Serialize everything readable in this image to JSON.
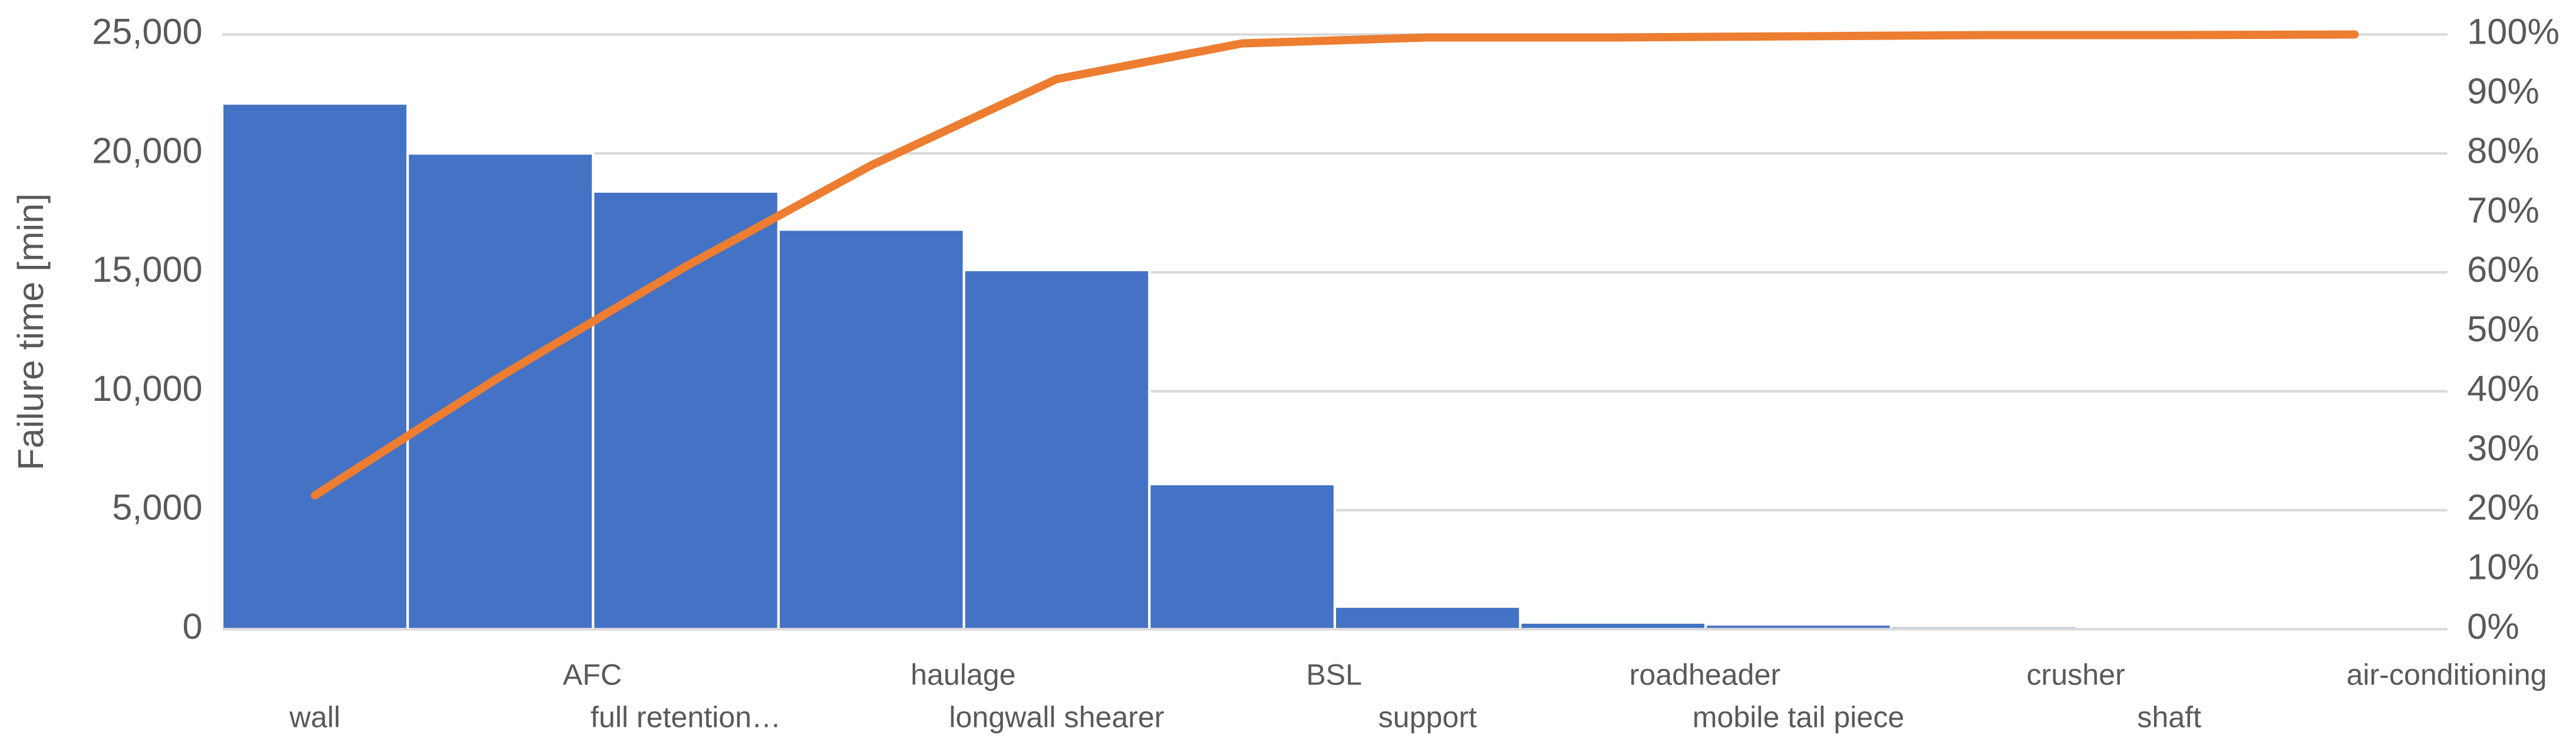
{
  "chart_data": {
    "type": "pareto",
    "y_label": "Failure time [min]",
    "categories": [
      "wall",
      "AFC",
      "full retention…",
      "haulage",
      "longwall shearer",
      "BSL",
      "support",
      "roadheader",
      "mobile tail piece",
      "crusher",
      "shaft",
      "air-conditioning"
    ],
    "series": [
      {
        "type": "bar",
        "color": "#4472c4",
        "values": [
          22100,
          20000,
          18400,
          16800,
          15100,
          6100,
          950,
          280,
          200,
          120,
          90,
          20
        ]
      },
      {
        "type": "line",
        "axis": "y2",
        "color": "#ed7d31",
        "values": [
          22.5,
          42.5,
          61,
          78,
          92.5,
          98.5,
          99.5,
          99.5,
          99.7,
          99.9,
          99.9,
          100
        ]
      }
    ],
    "ylim": [
      0,
      25000
    ],
    "yticks": [
      0,
      {
        "value": 5000,
        "label": "5,000"
      },
      {
        "value": 10000,
        "label": "10,000"
      },
      {
        "value": 15000,
        "label": "15,000"
      },
      {
        "value": 20000,
        "label": "20,000"
      },
      {
        "value": 25000,
        "label": "25,000"
      }
    ],
    "y2lim": [
      0,
      100
    ],
    "y2ticks": [
      {
        "value": 0,
        "label": "0%"
      },
      {
        "value": 10,
        "label": "10%"
      },
      {
        "value": 20,
        "label": "20%"
      },
      {
        "value": 30,
        "label": "30%"
      },
      {
        "value": 40,
        "label": "40%"
      },
      {
        "value": 50,
        "label": "50%"
      },
      {
        "value": 60,
        "label": "60%"
      },
      {
        "value": 70,
        "label": "70%"
      },
      {
        "value": 80,
        "label": "80%"
      },
      {
        "value": 90,
        "label": "90%"
      },
      {
        "value": 100,
        "label": "100%"
      }
    ],
    "grid": true
  }
}
